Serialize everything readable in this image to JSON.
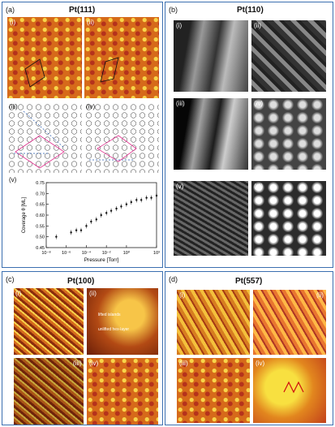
{
  "panel_a": {
    "tag": "(a)",
    "title": "Pt(111)",
    "sub": [
      "(i)",
      "(ii)",
      "(iii)",
      "(iv)",
      "(v)"
    ]
  },
  "panel_b": {
    "tag": "(b)",
    "title": "Pt(110)",
    "sub": [
      "(i)",
      "(ii)",
      "(iii)",
      "(iv)",
      "(v)",
      "(vi)"
    ]
  },
  "panel_c": {
    "tag": "(c)",
    "title": "Pt(100)",
    "sub": [
      "(i)",
      "(ii)",
      "(iii)",
      "(iv)"
    ],
    "annot": [
      "lifted islands",
      "unlifted hex-layer"
    ]
  },
  "panel_d": {
    "tag": "(d)",
    "title": "Pt(557)",
    "sub": [
      "(i)",
      "(ii)",
      "(iii)",
      "(iv)"
    ]
  },
  "chart_data": {
    "type": "scatter",
    "title": "",
    "xlabel": "Pressure [Torr]",
    "ylabel": "Coverage θ [ML]",
    "xscale": "log",
    "xlim": [
      1e-08,
      1000.0
    ],
    "ylim": [
      0.45,
      0.75
    ],
    "xticks": [
      "10⁻⁸",
      "10⁻⁶",
      "10⁻⁴",
      "10⁻²",
      "10⁰",
      "10³"
    ],
    "yticks": [
      "0.45",
      "0.50",
      "0.55",
      "0.60",
      "0.65",
      "0.70",
      "0.75"
    ],
    "x": [
      1e-07,
      3e-06,
      1e-05,
      3e-05,
      0.0001,
      0.0003,
      0.001,
      0.003,
      0.01,
      0.03,
      0.1,
      0.3,
      1,
      3,
      10,
      30,
      100,
      300,
      1000
    ],
    "y": [
      0.5,
      0.52,
      0.53,
      0.53,
      0.55,
      0.57,
      0.58,
      0.6,
      0.61,
      0.62,
      0.63,
      0.64,
      0.65,
      0.66,
      0.67,
      0.67,
      0.68,
      0.68,
      0.69
    ]
  }
}
